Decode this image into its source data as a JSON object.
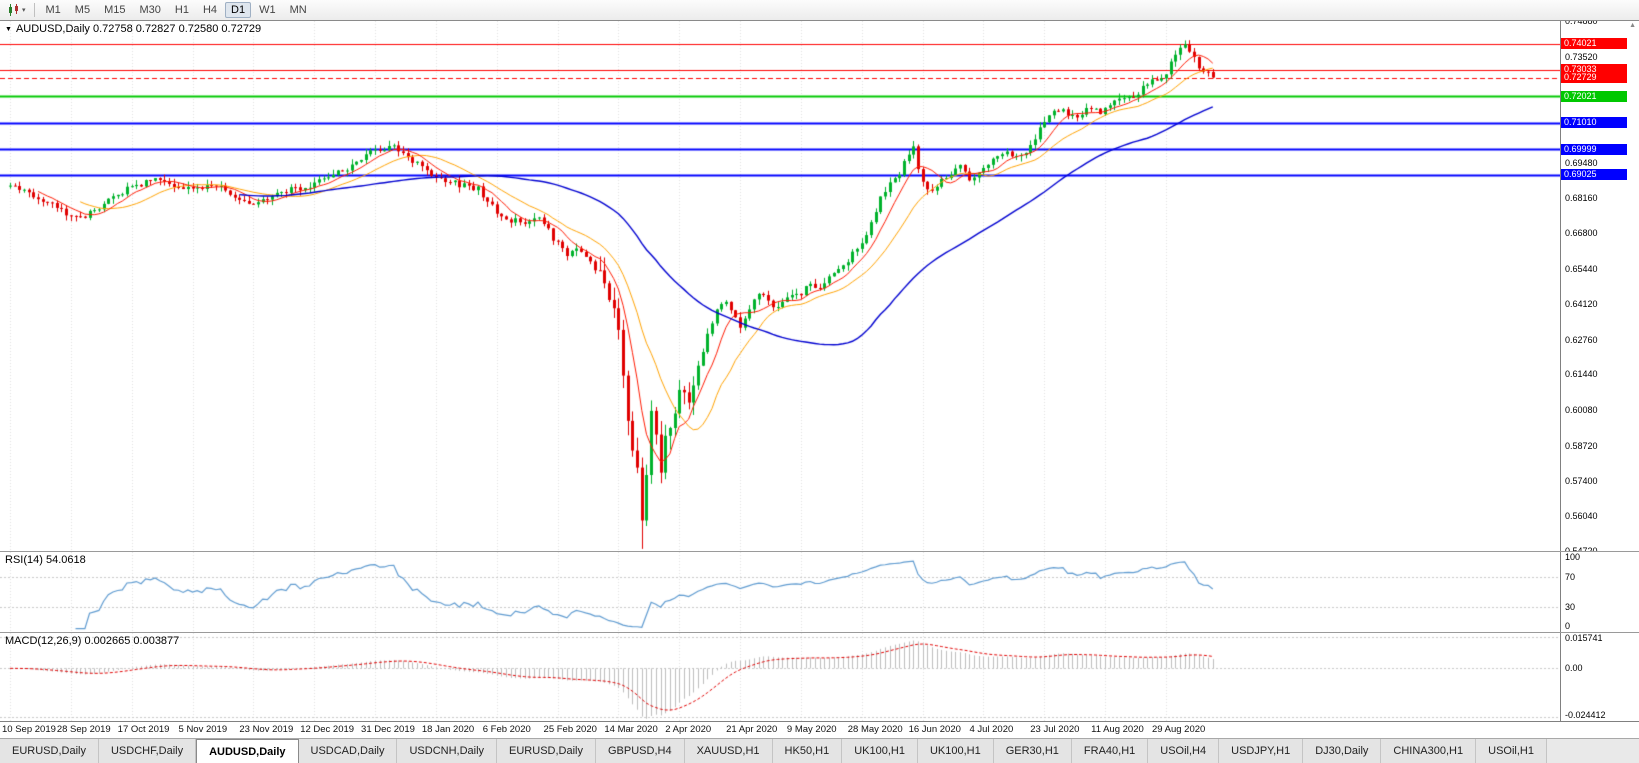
{
  "colors": {
    "up": "#00b22c",
    "down": "#e00000",
    "line_red": "#ff0000",
    "line_green": "#00c800",
    "line_blue": "#0000ff",
    "rsi": "#5f9bd0",
    "grid": "#e0e0e0",
    "macd_hist": "#bcbcbc",
    "macd_signal": "#e00000"
  },
  "icons": {
    "title_dropdown": "▼",
    "scroll_up": "▲",
    "toolbar_caret": "▾"
  },
  "toolbar": {
    "timeframes": [
      "M1",
      "M5",
      "M15",
      "M30",
      "H1",
      "H4",
      "D1",
      "W1",
      "MN"
    ],
    "active_timeframe": "D1"
  },
  "tabs": {
    "items": [
      "EURUSD,Daily",
      "USDCHF,Daily",
      "AUDUSD,Daily",
      "USDCAD,Daily",
      "USDCNH,Daily",
      "EURUSD,Daily",
      "GBPUSD,H4",
      "XAUUSD,H1",
      "HK50,H1",
      "UK100,H1",
      "UK100,H1",
      "GER30,H1",
      "FRA40,H1",
      "USOil,H4",
      "USDJPY,H1",
      "DJ30,Daily",
      "CHINA300,H1",
      "USOil,H1"
    ],
    "active_index": 2
  },
  "chart_data": [
    {
      "type": "candlestick",
      "title": "AUDUSD,Daily",
      "title_display": "AUDUSD,Daily 0.72758 0.72827 0.72580 0.72729",
      "ohlc_display": {
        "open": "0.72758",
        "high": "0.72827",
        "low": "0.72580",
        "close": "0.72729"
      },
      "bars": 258,
      "last_close": 0.72729,
      "ylim": [
        0.5472,
        0.7488
      ],
      "y_tick_labels": [
        "0.74880",
        "0.73520",
        "0.72160",
        "0.70800",
        "0.69480",
        "0.68160",
        "0.66800",
        "0.65440",
        "0.64120",
        "0.62760",
        "0.61440",
        "0.60080",
        "0.58720",
        "0.57400",
        "0.56040",
        "0.54720"
      ],
      "x_tick_bar_step": 13,
      "x_tick_labels": [
        "10 Sep 2019",
        "28 Sep 2019",
        "17 Oct 2019",
        "5 Nov 2019",
        "23 Nov 2019",
        "12 Dec 2019",
        "31 Dec 2019",
        "18 Jan 2020",
        "6 Feb 2020",
        "25 Feb 2020",
        "14 Mar 2020",
        "2 Apr 2020",
        "21 Apr 2020",
        "9 May 2020",
        "28 May 2020",
        "16 Jun 2020",
        "4 Jul 2020",
        "23 Jul 2020",
        "11 Aug 2020",
        "29 Aug 2020"
      ],
      "horizontal_lines": [
        {
          "price": 0.74021,
          "label": "0.74021",
          "color": "red"
        },
        {
          "price": 0.73033,
          "label": "0.73033",
          "color": "red"
        },
        {
          "price": 0.72729,
          "label": "0.72729",
          "color": "red",
          "role": "current-price"
        },
        {
          "price": 0.72021,
          "label": "0.72021",
          "color": "green"
        },
        {
          "price": 0.7101,
          "label": "0.71010",
          "color": "blue"
        },
        {
          "price": 0.69999,
          "label": "0.69999",
          "color": "blue"
        },
        {
          "price": 0.69025,
          "label": "0.69025",
          "color": "blue"
        }
      ],
      "moving_averages": [
        {
          "name": "ma-fast",
          "period": 7,
          "color": "#ff1a00"
        },
        {
          "name": "ma-mid",
          "period": 16,
          "color": "#ffa200"
        },
        {
          "name": "ma-slow",
          "period": 50,
          "color": "#0000d0"
        }
      ],
      "spike_low": {
        "bar": 135,
        "price": 0.548
      },
      "spike_high": {
        "bar": 251,
        "price": 0.7414
      },
      "close_anchors": [
        [
          0,
          0.686
        ],
        [
          4,
          0.6835
        ],
        [
          8,
          0.68
        ],
        [
          12,
          0.6755
        ],
        [
          16,
          0.6745
        ],
        [
          20,
          0.679
        ],
        [
          24,
          0.684
        ],
        [
          28,
          0.687
        ],
        [
          32,
          0.6885
        ],
        [
          36,
          0.685
        ],
        [
          40,
          0.6845
        ],
        [
          44,
          0.686
        ],
        [
          48,
          0.682
        ],
        [
          52,
          0.6795
        ],
        [
          56,
          0.682
        ],
        [
          60,
          0.6845
        ],
        [
          64,
          0.6865
        ],
        [
          68,
          0.689
        ],
        [
          72,
          0.693
        ],
        [
          76,
          0.6975
        ],
        [
          79,
          0.7005
        ],
        [
          82,
          0.701
        ],
        [
          85,
          0.6965
        ],
        [
          88,
          0.693
        ],
        [
          92,
          0.689
        ],
        [
          96,
          0.6865
        ],
        [
          100,
          0.685
        ],
        [
          103,
          0.678
        ],
        [
          106,
          0.6735
        ],
        [
          110,
          0.672
        ],
        [
          113,
          0.6745
        ],
        [
          116,
          0.666
        ],
        [
          119,
          0.66
        ],
        [
          122,
          0.662
        ],
        [
          125,
          0.655
        ],
        [
          128,
          0.645
        ],
        [
          130,
          0.633
        ],
        [
          132,
          0.598
        ],
        [
          134,
          0.576
        ],
        [
          135,
          0.556
        ],
        [
          136,
          0.579
        ],
        [
          137,
          0.602
        ],
        [
          138,
          0.594
        ],
        [
          139,
          0.58
        ],
        [
          141,
          0.596
        ],
        [
          143,
          0.609
        ],
        [
          145,
          0.605
        ],
        [
          147,
          0.618
        ],
        [
          149,
          0.63
        ],
        [
          151,
          0.639
        ],
        [
          153,
          0.643
        ],
        [
          156,
          0.633
        ],
        [
          158,
          0.64
        ],
        [
          160,
          0.6455
        ],
        [
          162,
          0.642
        ],
        [
          164,
          0.639
        ],
        [
          166,
          0.643
        ],
        [
          169,
          0.6455
        ],
        [
          171,
          0.649
        ],
        [
          173,
          0.647
        ],
        [
          175,
          0.651
        ],
        [
          178,
          0.655
        ],
        [
          180,
          0.66
        ],
        [
          182,
          0.664
        ],
        [
          184,
          0.672
        ],
        [
          186,
          0.682
        ],
        [
          188,
          0.687
        ],
        [
          190,
          0.691
        ],
        [
          192,
          0.698
        ],
        [
          193,
          0.7
        ],
        [
          194,
          0.693
        ],
        [
          195,
          0.6875
        ],
        [
          197,
          0.684
        ],
        [
          199,
          0.688
        ],
        [
          201,
          0.6905
        ],
        [
          203,
          0.693
        ],
        [
          205,
          0.688
        ],
        [
          207,
          0.692
        ],
        [
          209,
          0.6945
        ],
        [
          211,
          0.6965
        ],
        [
          213,
          0.698
        ],
        [
          215,
          0.6975
        ],
        [
          217,
          0.699
        ],
        [
          219,
          0.704
        ],
        [
          221,
          0.7115
        ],
        [
          223,
          0.714
        ],
        [
          225,
          0.7155
        ],
        [
          227,
          0.712
        ],
        [
          229,
          0.7135
        ],
        [
          231,
          0.7165
        ],
        [
          233,
          0.7145
        ],
        [
          235,
          0.7165
        ],
        [
          237,
          0.7185
        ],
        [
          239,
          0.719
        ],
        [
          241,
          0.7215
        ],
        [
          243,
          0.7245
        ],
        [
          245,
          0.727
        ],
        [
          247,
          0.729
        ],
        [
          249,
          0.737
        ],
        [
          251,
          0.7405
        ],
        [
          252,
          0.738
        ],
        [
          253,
          0.734
        ],
        [
          254,
          0.731
        ],
        [
          255,
          0.7285
        ],
        [
          256,
          0.73
        ],
        [
          257,
          0.7273
        ]
      ]
    },
    {
      "type": "line",
      "title": "RSI(14)",
      "title_display": "RSI(14) 54.0618",
      "current_value": "54.0618",
      "levels": [
        70,
        30
      ],
      "ylim": [
        0,
        100
      ],
      "y_tick_labels": [
        "100",
        "70",
        "30",
        "0"
      ]
    },
    {
      "type": "macd",
      "title": "MACD(12,26,9)",
      "title_display": "MACD(12,26,9) 0.002665 0.003877",
      "current_values": "0.002665 0.003877",
      "ylim": [
        -0.024412,
        0.015741
      ],
      "y_tick_labels": [
        "0.015741",
        "0.00",
        "-0.024412"
      ]
    }
  ]
}
